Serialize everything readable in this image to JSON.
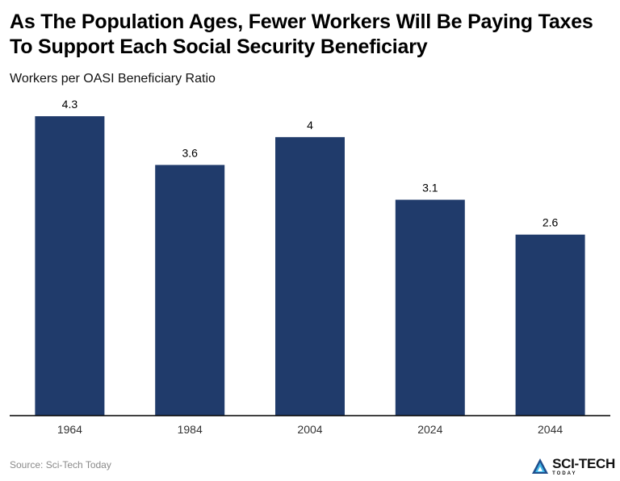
{
  "header": {
    "title": "As The Population Ages, Fewer Workers Will Be Paying Taxes To Support Each Social Security Beneficiary",
    "subtitle": "Workers per OASI Beneficiary Ratio"
  },
  "footer": {
    "source": "Source: Sci-Tech Today",
    "logo_main": "SCI-TECH",
    "logo_sub": "TODAY"
  },
  "colors": {
    "bar": "#203b6b",
    "axis": "#000000",
    "label": "#000000",
    "tick": "#333333"
  },
  "chart_data": {
    "type": "bar",
    "title": "As The Population Ages, Fewer Workers Will Be Paying Taxes To Support Each Social Security Beneficiary",
    "subtitle": "Workers per OASI Beneficiary Ratio",
    "categories": [
      "1964",
      "1984",
      "2004",
      "2024",
      "2044"
    ],
    "values": [
      4.3,
      3.6,
      4,
      3.1,
      2.6
    ],
    "value_labels": [
      "4.3",
      "3.6",
      "4",
      "3.1",
      "2.6"
    ],
    "ylim": [
      0,
      4.3
    ],
    "grid": false,
    "legend": "none"
  }
}
